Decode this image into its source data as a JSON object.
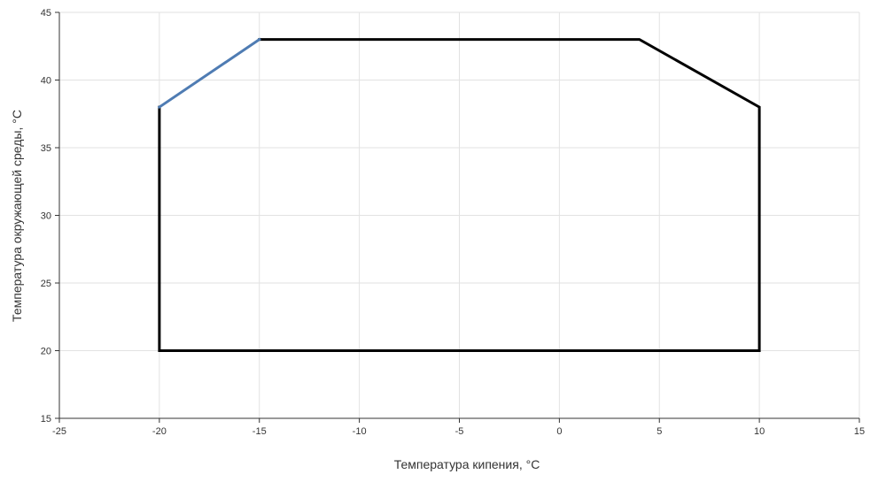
{
  "chart_data": {
    "type": "line",
    "title": "",
    "xlabel": "Температура кипения, °C",
    "ylabel": "Температура окружающей среды, °C",
    "xlim": [
      -25,
      15
    ],
    "ylim": [
      15,
      45
    ],
    "x_ticks": [
      -25,
      -20,
      -15,
      -10,
      -5,
      0,
      5,
      10,
      15
    ],
    "y_ticks": [
      15,
      20,
      25,
      30,
      35,
      40,
      45
    ],
    "grid": true,
    "series": [
      {
        "color": "#000000",
        "points": [
          [
            -20,
            38
          ],
          [
            -20,
            20
          ],
          [
            10,
            20
          ],
          [
            10,
            38
          ],
          [
            4,
            43
          ],
          [
            -15,
            43
          ]
        ]
      },
      {
        "color": "#4f7cb3",
        "points": [
          [
            -20,
            38
          ],
          [
            -15,
            43
          ]
        ]
      }
    ]
  }
}
